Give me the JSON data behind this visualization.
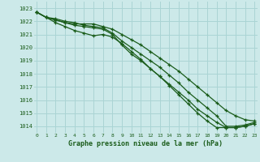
{
  "x": [
    0,
    1,
    2,
    3,
    4,
    5,
    6,
    7,
    8,
    9,
    10,
    11,
    12,
    13,
    14,
    15,
    16,
    17,
    18,
    19,
    20,
    21,
    22,
    23
  ],
  "line1": [
    1022.7,
    1022.3,
    1022.2,
    1022.0,
    1021.9,
    1021.7,
    1021.6,
    1021.5,
    1021.1,
    1020.5,
    1020.0,
    1019.5,
    1019.0,
    1018.5,
    1017.9,
    1017.3,
    1016.6,
    1016.0,
    1015.4,
    1014.8,
    1014.0,
    1014.0,
    1014.1,
    1014.3
  ],
  "line2": [
    1022.7,
    1022.3,
    1022.1,
    1021.9,
    1021.8,
    1021.8,
    1021.8,
    1021.6,
    1021.4,
    1021.0,
    1020.6,
    1020.2,
    1019.7,
    1019.2,
    1018.7,
    1018.2,
    1017.6,
    1017.0,
    1016.4,
    1015.8,
    1015.2,
    1014.8,
    1014.5,
    1014.4
  ],
  "line3": [
    1022.7,
    1022.3,
    1022.1,
    1021.9,
    1021.7,
    1021.6,
    1021.5,
    1021.4,
    1021.0,
    1020.2,
    1019.5,
    1019.0,
    1018.4,
    1017.8,
    1017.2,
    1016.6,
    1016.0,
    1015.3,
    1014.8,
    1014.3,
    1013.9,
    1013.9,
    1014.0,
    1014.2
  ],
  "line4": [
    1022.7,
    1022.3,
    1021.9,
    1021.6,
    1021.3,
    1021.1,
    1020.9,
    1021.0,
    1020.8,
    1020.3,
    1019.7,
    1019.1,
    1018.4,
    1017.8,
    1017.1,
    1016.4,
    1015.7,
    1015.0,
    1014.4,
    1013.9,
    1013.9,
    1013.9,
    1014.0,
    1014.2
  ],
  "bg_color": "#cce9e9",
  "grid_color": "#aad4d4",
  "line_color": "#1a5c1a",
  "xlabel": "Graphe pression niveau de la mer (hPa)",
  "ylim_min": 1013.5,
  "ylim_max": 1023.5,
  "xlim_min": -0.3,
  "xlim_max": 23.3,
  "yticks": [
    1014,
    1015,
    1016,
    1017,
    1018,
    1019,
    1020,
    1021,
    1022,
    1023
  ],
  "xticks": [
    0,
    1,
    2,
    3,
    4,
    5,
    6,
    7,
    8,
    9,
    10,
    11,
    12,
    13,
    14,
    15,
    16,
    17,
    18,
    19,
    20,
    21,
    22,
    23
  ]
}
